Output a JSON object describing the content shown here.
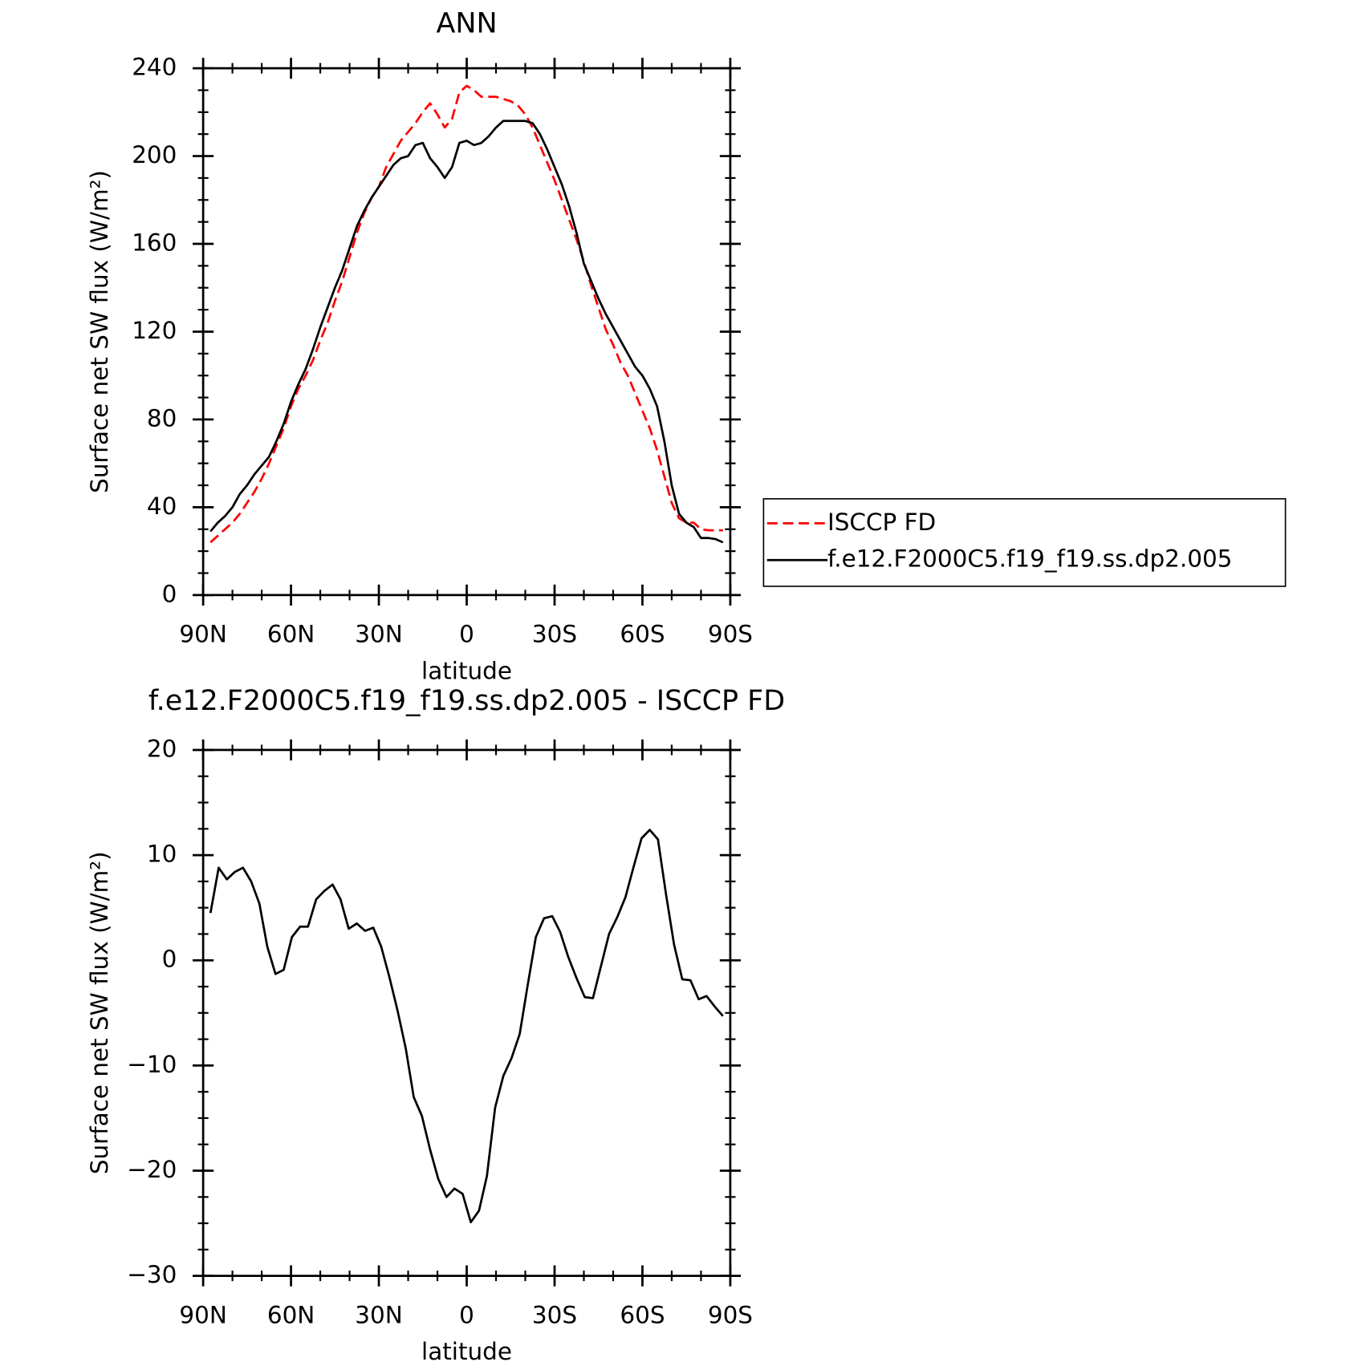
{
  "chart_data": [
    {
      "type": "line",
      "title": "ANN",
      "xlabel": "latitude",
      "ylabel": "Surface net SW flux (W/m²)",
      "xlim": [
        90,
        -90
      ],
      "xticks": [
        {
          "value": 90,
          "label": "90N"
        },
        {
          "value": 60,
          "label": "60N"
        },
        {
          "value": 30,
          "label": "30N"
        },
        0,
        {
          "value": -30,
          "label": "30S"
        },
        {
          "value": -60,
          "label": "60S"
        },
        {
          "value": -90,
          "label": "90S"
        }
      ],
      "ylim": [
        0,
        240
      ],
      "yticks": [
        0,
        40,
        80,
        120,
        160,
        200,
        240
      ],
      "legend": "outside right",
      "x": [
        87.5,
        85,
        82.5,
        80,
        77.5,
        75,
        72.5,
        70,
        67.5,
        65,
        62.5,
        60,
        57.5,
        55,
        52.5,
        50,
        47.5,
        45,
        42.5,
        40,
        37.5,
        35,
        32.5,
        30,
        27.5,
        25,
        22.5,
        20,
        17.5,
        15,
        12.5,
        10,
        7.5,
        5,
        2.5,
        0,
        -2.5,
        -5,
        -7.5,
        -10,
        -12.5,
        -15,
        -17.5,
        -20,
        -22.5,
        -25,
        -27.5,
        -30,
        -32.5,
        -35,
        -37.5,
        -40,
        -42.5,
        -45,
        -47.5,
        -50,
        -52.5,
        -55,
        -57.5,
        -60,
        -62.5,
        -65,
        -67.5,
        -70,
        -72.5,
        -75,
        -77.5,
        -80,
        -82.5,
        -85,
        -87.5
      ],
      "series": [
        {
          "name": "ISCCP FD",
          "color": "#ff0000",
          "linestyle": "dashed",
          "values": [
            24,
            27,
            30,
            33,
            37,
            42,
            47,
            53,
            60,
            68,
            76,
            86,
            94,
            100,
            107,
            116,
            124,
            134,
            143,
            154,
            165,
            174,
            181,
            186,
            195,
            201,
            207,
            211,
            215,
            220,
            224,
            219,
            213,
            217,
            229,
            232,
            230,
            227,
            227,
            227,
            226,
            225,
            223,
            219,
            213,
            205,
            197,
            189,
            180,
            171,
            162,
            152,
            141,
            131,
            121,
            114,
            106,
            100,
            92,
            84,
            76,
            66,
            54,
            42,
            35,
            33,
            33,
            30,
            29.5,
            29.5,
            29.5
          ]
        },
        {
          "name": "f.e12.F2000C5.f19_f19.ss.dp2.005",
          "color": "#000000",
          "linestyle": "solid",
          "values": [
            29,
            33,
            36,
            40,
            46,
            50,
            55,
            59,
            63,
            70,
            78,
            88,
            96,
            103,
            112,
            122,
            131,
            140,
            148,
            158,
            168,
            175,
            181,
            186,
            191,
            196,
            199,
            200,
            205,
            206,
            199,
            195,
            190,
            195,
            206,
            207,
            205,
            206,
            209,
            213,
            216,
            216,
            216,
            216,
            215,
            210,
            203,
            195,
            187,
            177,
            165,
            151,
            143,
            135,
            128,
            122,
            116,
            110,
            104,
            100,
            94,
            86,
            70,
            50,
            37,
            33,
            31,
            26,
            26,
            25.5,
            24
          ]
        }
      ]
    },
    {
      "type": "line",
      "title": "f.e12.F2000C5.f19_f19.ss.dp2.005 - ISCCP FD",
      "xlabel": "latitude",
      "ylabel": "Surface net SW flux (W/m²)",
      "xlim": [
        90,
        -90
      ],
      "xticks": [
        {
          "value": 90,
          "label": "90N"
        },
        {
          "value": 60,
          "label": "60N"
        },
        {
          "value": 30,
          "label": "30N"
        },
        0,
        {
          "value": -30,
          "label": "30S"
        },
        {
          "value": -60,
          "label": "60S"
        },
        {
          "value": -90,
          "label": "90S"
        }
      ],
      "ylim": [
        -30,
        20
      ],
      "yticks": [
        {
          "value": -30,
          "label": "−30"
        },
        {
          "value": -20,
          "label": "−20"
        },
        {
          "value": -10,
          "label": "−10"
        },
        0,
        10,
        20
      ],
      "x": [
        87.5,
        84.7,
        81.9,
        79.2,
        76.4,
        73.6,
        70.8,
        68.1,
        65.3,
        62.5,
        59.7,
        56.9,
        54.2,
        51.4,
        48.6,
        45.8,
        43.1,
        40.3,
        37.5,
        34.7,
        31.9,
        29.2,
        26.4,
        23.6,
        20.8,
        18.1,
        15.3,
        12.5,
        9.7,
        6.9,
        4.2,
        1.4,
        -1.4,
        -4.2,
        -6.9,
        -9.7,
        -12.5,
        -15.3,
        -18.1,
        -20.8,
        -23.6,
        -26.4,
        -29.2,
        -31.9,
        -34.7,
        -37.5,
        -40.3,
        -43.1,
        -45.8,
        -48.6,
        -51.4,
        -54.2,
        -56.9,
        -59.7,
        -62.5,
        -65.3,
        -68.1,
        -70.8,
        -73.6,
        -76.4,
        -79.2,
        -81.9,
        -84.7,
        -87.5
      ],
      "series": [
        {
          "color": "#000000",
          "linestyle": "solid",
          "values": [
            4.5,
            8.8,
            7.7,
            8.4,
            8.8,
            7.5,
            5.4,
            1.3,
            -1.3,
            -0.9,
            2.2,
            3.2,
            3.2,
            5.8,
            6.6,
            7.2,
            5.8,
            3.0,
            3.5,
            2.8,
            3.1,
            1.3,
            -1.6,
            -4.8,
            -8.4,
            -13,
            -14.8,
            -18,
            -20.8,
            -22.5,
            -21.7,
            -22.2,
            -24.9,
            -23.8,
            -20.5,
            -14,
            -11,
            -9.3,
            -7,
            -2.4,
            2.2,
            4,
            4.2,
            2.7,
            0.3,
            -1.7,
            -3.5,
            -3.6,
            -0.6,
            2.5,
            4.1,
            6.0,
            8.8,
            11.6,
            12.4,
            11.5,
            6.2,
            1.5,
            -1.8,
            -1.9,
            -3.7,
            -3.4,
            -4.4,
            -5.3
          ]
        }
      ]
    }
  ]
}
